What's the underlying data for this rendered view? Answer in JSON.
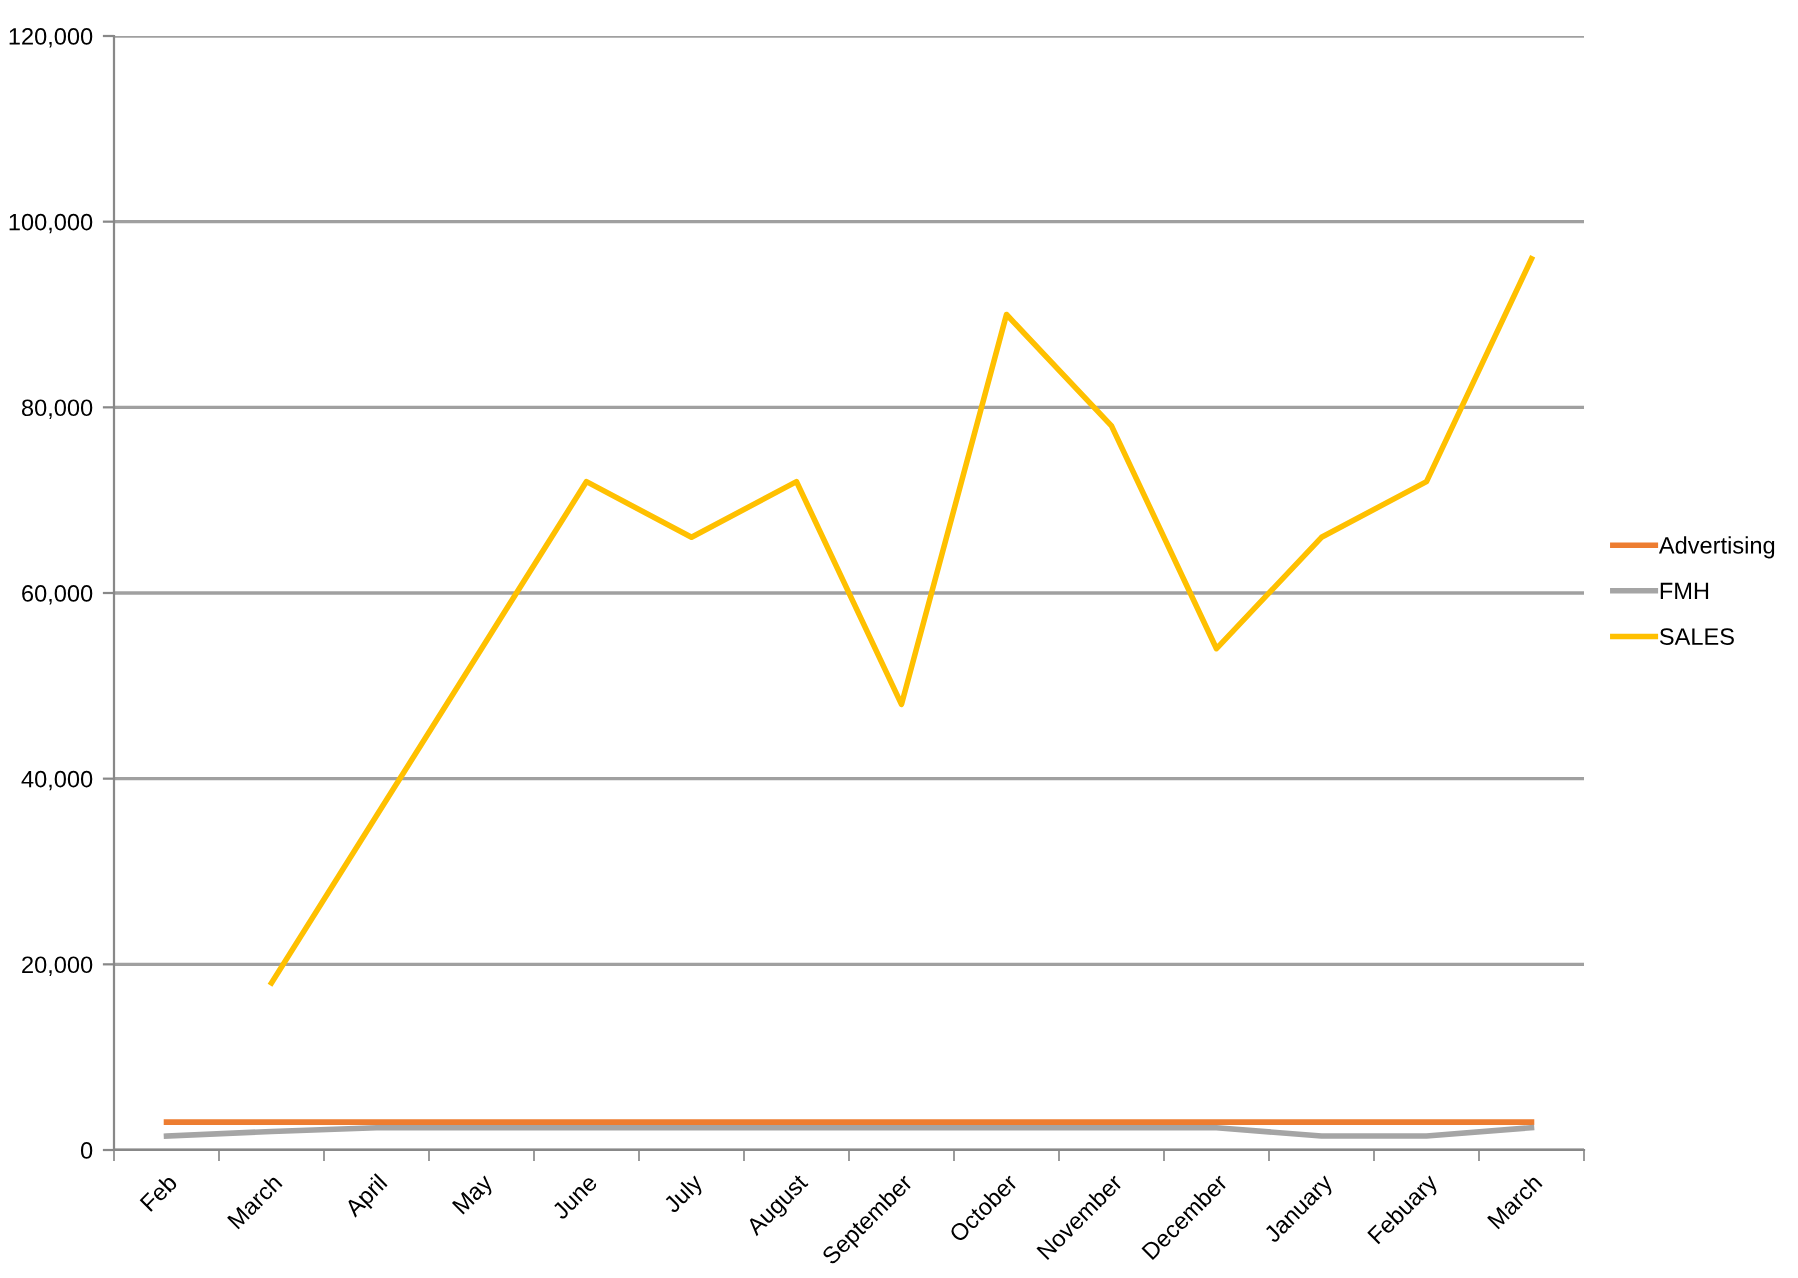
{
  "chart_data": {
    "type": "line",
    "categories": [
      "Feb",
      "March",
      "April",
      "May",
      "June",
      "July",
      "August",
      "September",
      "October",
      "November",
      "December",
      "January",
      "Febuary",
      "March"
    ],
    "series": [
      {
        "name": "Advertising",
        "color": "#ed7d31",
        "values": [
          3000,
          3000,
          3000,
          3000,
          3000,
          3000,
          3000,
          3000,
          3000,
          3000,
          3000,
          3000,
          3000,
          3000
        ]
      },
      {
        "name": "FMH",
        "color": "#a5a5a5",
        "values": [
          1500,
          2000,
          2400,
          2400,
          2400,
          2400,
          2400,
          2400,
          2400,
          2400,
          2400,
          1500,
          1500,
          2400
        ]
      },
      {
        "name": "SALES",
        "color": "#ffc000",
        "values": [
          null,
          18000,
          36000,
          54000,
          72000,
          66000,
          72000,
          48000,
          90000,
          78000,
          54000,
          66000,
          72000,
          96000
        ]
      }
    ],
    "ylim": [
      0,
      120000
    ],
    "yticks": [
      0,
      {
        "value": 20000,
        "label": "20,000"
      },
      {
        "value": 40000,
        "label": "40,000"
      },
      {
        "value": 60000,
        "label": "60,000"
      },
      {
        "value": 80000,
        "label": "80,000"
      },
      {
        "value": 100000,
        "label": "100,000"
      },
      {
        "value": 120000,
        "label": "120,000"
      }
    ],
    "grid": "y",
    "legend": "right",
    "line_style": "solid"
  }
}
